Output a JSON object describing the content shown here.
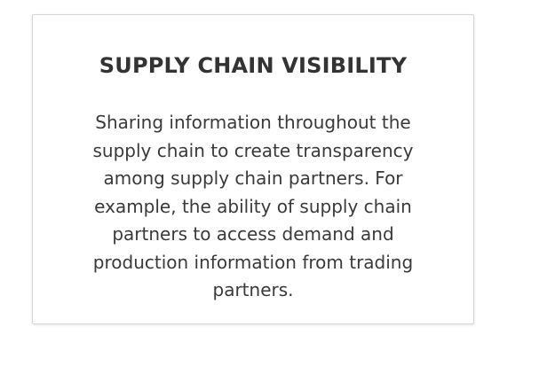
{
  "card": {
    "title": "SUPPLY CHAIN VISIBILITY",
    "body_lines": [
      "Sharing information throughout the",
      "supply chain to create transparency",
      "among supply chain partners. For",
      "example, the ability of supply chain",
      "partners to access demand and",
      "production information from trading",
      "partners."
    ]
  }
}
